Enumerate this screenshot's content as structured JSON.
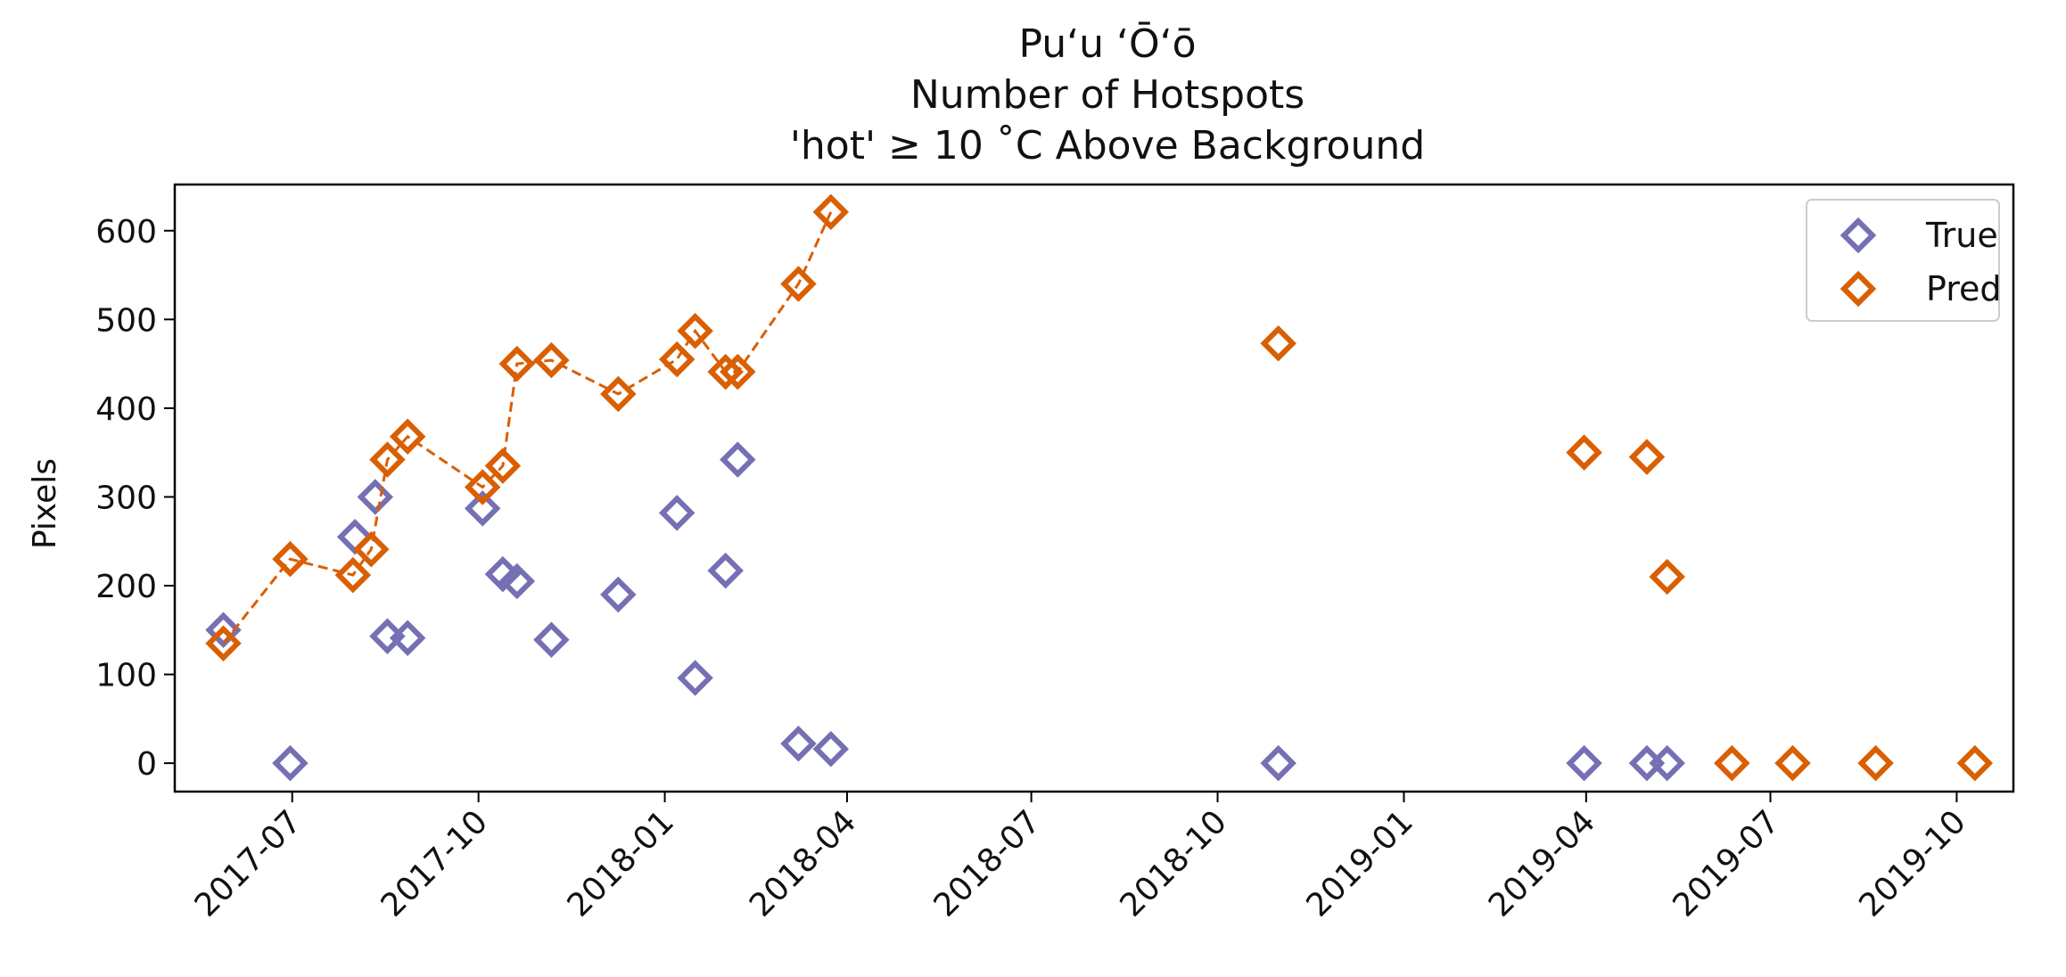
{
  "chart_data": {
    "type": "scatter",
    "title_lines": [
      "Pu‘u ‘Ō‘ō",
      "Number of Hotspots",
      "'hot'  ≥  10 ˚C Above Background"
    ],
    "xlabel": "",
    "ylabel": "Pixels",
    "ylim": [
      -32,
      652
    ],
    "xlim": [
      "2017-05-04",
      "2019-10-29"
    ],
    "y_ticks": [
      0,
      100,
      200,
      300,
      400,
      500,
      600
    ],
    "x_ticks": [
      "2017-07-01",
      "2017-10-01",
      "2018-01-01",
      "2018-04-01",
      "2018-07-01",
      "2018-10-01",
      "2019-01-01",
      "2019-04-01",
      "2019-07-01",
      "2019-10-01"
    ],
    "x_tick_labels": [
      "2017-07",
      "2017-10",
      "2018-01",
      "2018-04",
      "2018-07",
      "2018-10",
      "2019-01",
      "2019-04",
      "2019-07",
      "2019-10"
    ],
    "grid": false,
    "legend_position": "top-right",
    "series": [
      {
        "name": "True",
        "color": "#7570b3",
        "marker": "diamond",
        "line": "none",
        "points": [
          {
            "x": "2017-05-28",
            "y": 150
          },
          {
            "x": "2017-06-30",
            "y": 0
          },
          {
            "x": "2017-08-01",
            "y": 255
          },
          {
            "x": "2017-08-11",
            "y": 300
          },
          {
            "x": "2017-08-17",
            "y": 143
          },
          {
            "x": "2017-08-27",
            "y": 141
          },
          {
            "x": "2017-10-03",
            "y": 287
          },
          {
            "x": "2017-10-13",
            "y": 213
          },
          {
            "x": "2017-10-20",
            "y": 205
          },
          {
            "x": "2017-11-06",
            "y": 139
          },
          {
            "x": "2017-12-09",
            "y": 190
          },
          {
            "x": "2018-01-07",
            "y": 282
          },
          {
            "x": "2018-01-16",
            "y": 96
          },
          {
            "x": "2018-01-31",
            "y": 217
          },
          {
            "x": "2018-02-06",
            "y": 342
          },
          {
            "x": "2018-03-08",
            "y": 22
          },
          {
            "x": "2018-03-24",
            "y": 16
          },
          {
            "x": "2018-10-31",
            "y": 0
          },
          {
            "x": "2019-03-31",
            "y": 0
          },
          {
            "x": "2019-05-01",
            "y": 0
          },
          {
            "x": "2019-05-11",
            "y": 0
          }
        ]
      },
      {
        "name": "Pred",
        "color": "#d95f02",
        "marker": "diamond",
        "line": "dashed-first-segment",
        "points": [
          {
            "x": "2017-05-28",
            "y": 135
          },
          {
            "x": "2017-06-30",
            "y": 230
          },
          {
            "x": "2017-07-31",
            "y": 212
          },
          {
            "x": "2017-08-09",
            "y": 241
          },
          {
            "x": "2017-08-17",
            "y": 342
          },
          {
            "x": "2017-08-27",
            "y": 368
          },
          {
            "x": "2017-10-03",
            "y": 311
          },
          {
            "x": "2017-10-13",
            "y": 335
          },
          {
            "x": "2017-10-20",
            "y": 450
          },
          {
            "x": "2017-11-06",
            "y": 454
          },
          {
            "x": "2017-12-09",
            "y": 416
          },
          {
            "x": "2018-01-07",
            "y": 455
          },
          {
            "x": "2018-01-16",
            "y": 487
          },
          {
            "x": "2018-01-31",
            "y": 441
          },
          {
            "x": "2018-02-06",
            "y": 441
          },
          {
            "x": "2018-03-08",
            "y": 540
          },
          {
            "x": "2018-03-24",
            "y": 621
          },
          {
            "x": "2018-10-31",
            "y": 473
          },
          {
            "x": "2019-03-31",
            "y": 350
          },
          {
            "x": "2019-05-01",
            "y": 345
          },
          {
            "x": "2019-05-11",
            "y": 210
          },
          {
            "x": "2019-06-12",
            "y": 0
          },
          {
            "x": "2019-07-12",
            "y": 0
          },
          {
            "x": "2019-08-22",
            "y": 0
          },
          {
            "x": "2019-10-10",
            "y": 0
          }
        ],
        "connected_count": 17
      }
    ]
  }
}
